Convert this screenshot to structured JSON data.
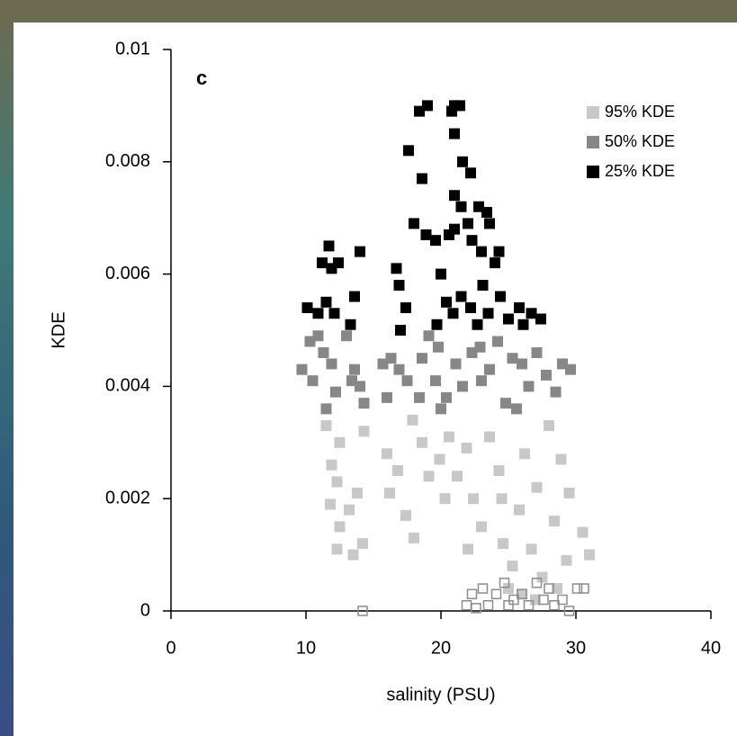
{
  "chart_data": {
    "type": "scatter",
    "panel_label": "c",
    "xlabel": "salinity (PSU)",
    "ylabel": "KDE",
    "xlim": [
      0,
      40
    ],
    "xticks": [
      0,
      10,
      20,
      30,
      40
    ],
    "ylim": [
      0,
      0.01
    ],
    "yticks": [
      0,
      0.002,
      0.004,
      0.006,
      0.008,
      0.01
    ],
    "legend": "upper right",
    "series": [
      {
        "name": "95% KDE",
        "color": "#c8c8c8",
        "x": [
          11.5,
          12.5,
          11.9,
          12.3,
          11.8,
          12.5,
          13.2,
          12.3,
          13.5,
          13.8,
          14.2,
          14.3,
          16.0,
          16.8,
          16.2,
          17.4,
          18.0,
          17.9,
          18.6,
          19.1,
          19.9,
          20.6,
          20.3,
          21.2,
          21.9,
          22.4,
          23.0,
          23.6,
          24.3,
          24.6,
          25.3,
          25.8,
          26.2,
          26.7,
          27.1,
          27.5,
          28.0,
          28.4,
          28.9,
          29.3,
          29.5,
          30.5,
          31.0,
          25.0,
          26.0,
          27.0,
          28.6,
          24.5,
          22.0
        ],
        "values": [
          0.0033,
          0.003,
          0.0026,
          0.0023,
          0.0019,
          0.0015,
          0.0018,
          0.0011,
          0.001,
          0.0021,
          0.0012,
          0.0032,
          0.0028,
          0.0025,
          0.0021,
          0.0017,
          0.0013,
          0.0034,
          0.003,
          0.0024,
          0.0027,
          0.0031,
          0.002,
          0.0024,
          0.0029,
          0.002,
          0.0015,
          0.0031,
          0.0025,
          0.0012,
          0.0008,
          0.0018,
          0.0028,
          0.0011,
          0.0022,
          0.0006,
          0.0033,
          0.0016,
          0.0027,
          0.0009,
          0.0021,
          0.0014,
          0.001,
          0.0004,
          0.0003,
          0.0002,
          0.0004,
          0.002,
          0.0011
        ]
      },
      {
        "name": "50% KDE",
        "color": "#878787",
        "x": [
          9.7,
          10.3,
          10.9,
          11.3,
          10.5,
          11.9,
          12.2,
          13.4,
          13.6,
          14.3,
          14.0,
          15.7,
          16.3,
          16.9,
          16.0,
          17.5,
          18.4,
          18.6,
          19.1,
          19.8,
          19.6,
          20.4,
          21.1,
          21.6,
          22.3,
          22.9,
          23.0,
          23.6,
          24.2,
          24.8,
          25.3,
          26.0,
          26.5,
          27.1,
          27.8,
          28.5,
          29.0,
          29.6,
          25.6,
          20.0,
          13.0,
          11.5
        ],
        "values": [
          0.0043,
          0.0048,
          0.0049,
          0.0046,
          0.0041,
          0.0044,
          0.0039,
          0.0041,
          0.0043,
          0.0037,
          0.004,
          0.0044,
          0.0045,
          0.0043,
          0.0038,
          0.0041,
          0.0038,
          0.0045,
          0.0049,
          0.0047,
          0.0041,
          0.0038,
          0.0044,
          0.004,
          0.0046,
          0.0047,
          0.0041,
          0.0043,
          0.0048,
          0.0037,
          0.0045,
          0.0044,
          0.004,
          0.0046,
          0.0042,
          0.0039,
          0.0044,
          0.0043,
          0.0036,
          0.0036,
          0.0049,
          0.0036
        ]
      },
      {
        "name": "25% KDE",
        "color": "#000000",
        "x": [
          11.7,
          11.2,
          11.9,
          12.4,
          14.0,
          10.1,
          10.9,
          11.5,
          12.1,
          13.6,
          13.3,
          16.7,
          16.9,
          17.4,
          17.0,
          18.0,
          17.6,
          18.4,
          18.6,
          19.0,
          18.9,
          19.6,
          20.0,
          20.6,
          20.8,
          21.0,
          21.4,
          21.0,
          21.6,
          22.2,
          21.0,
          21.5,
          22.0,
          22.8,
          23.4,
          23.6,
          21.0,
          22.3,
          23.0,
          24.0,
          24.3,
          20.4,
          20.9,
          21.5,
          22.2,
          23.1,
          23.5,
          24.4,
          25.0,
          25.8,
          26.7,
          27.4,
          19.7,
          22.7,
          26.1
        ],
        "values": [
          0.0065,
          0.0062,
          0.0061,
          0.0062,
          0.0064,
          0.0054,
          0.0053,
          0.0055,
          0.0053,
          0.0056,
          0.0051,
          0.0061,
          0.0058,
          0.0054,
          0.005,
          0.0069,
          0.0082,
          0.0089,
          0.0077,
          0.009,
          0.0067,
          0.0066,
          0.006,
          0.0067,
          0.0089,
          0.009,
          0.009,
          0.0085,
          0.008,
          0.0078,
          0.0074,
          0.0072,
          0.0069,
          0.0072,
          0.0071,
          0.0069,
          0.0068,
          0.0066,
          0.0064,
          0.0062,
          0.0064,
          0.0055,
          0.0053,
          0.0056,
          0.0054,
          0.0058,
          0.0053,
          0.0056,
          0.0052,
          0.0054,
          0.0053,
          0.0052,
          0.0051,
          0.0051,
          0.0051
        ]
      },
      {
        "color": "#8c8c8c",
        "marker": "open",
        "x": [
          14.2,
          21.9,
          22.3,
          23.1,
          23.5,
          24.1,
          24.7,
          25.4,
          26.0,
          26.5,
          27.1,
          27.6,
          28.0,
          28.4,
          29.0,
          29.5,
          30.1,
          30.6,
          22.6,
          25.0
        ],
        "values": [
          0,
          0.0001,
          0.0003,
          0.0004,
          0.0001,
          0.0003,
          0.0005,
          0.0002,
          0.0003,
          0.0001,
          0.0005,
          0.0002,
          0.0004,
          0.0001,
          0.0002,
          0,
          0.0004,
          0.0004,
          5e-05,
          0.0001
        ]
      }
    ]
  }
}
